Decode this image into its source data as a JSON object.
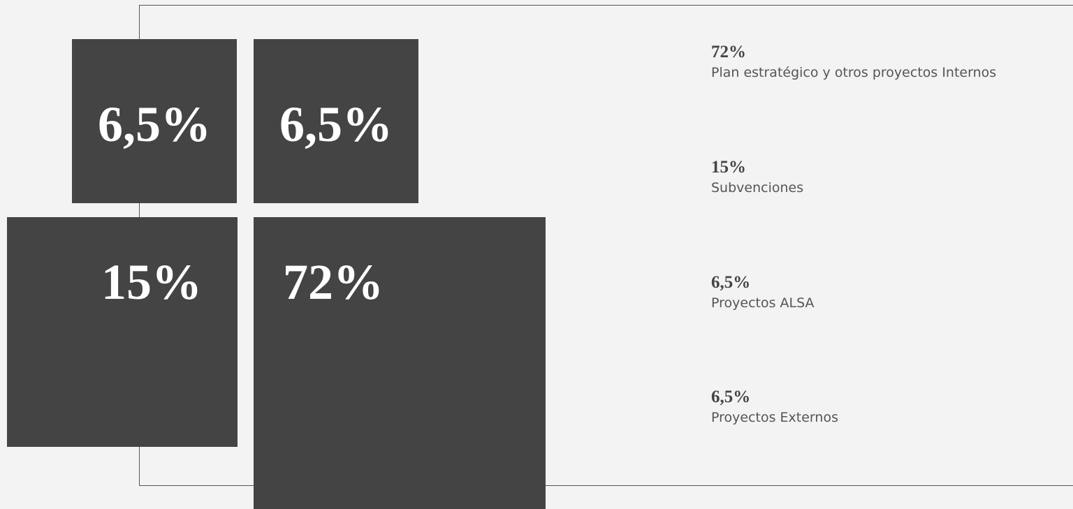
{
  "boxes": [
    {
      "label": "6,5%"
    },
    {
      "label": "6,5%"
    },
    {
      "label": "15%"
    },
    {
      "label": "72%"
    }
  ],
  "legend": [
    {
      "value": "72%",
      "label": "Plan estratégico y otros proyectos Internos"
    },
    {
      "value": "15%",
      "label": "Subvenciones"
    },
    {
      "value": "6,5%",
      "label": "Proyectos ALSA"
    },
    {
      "value": "6,5%",
      "label": "Proyectos Externos"
    }
  ]
}
